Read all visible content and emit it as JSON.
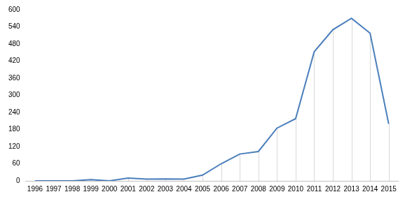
{
  "chart_data": {
    "type": "line",
    "categories": [
      "1996",
      "1997",
      "1998",
      "1999",
      "2000",
      "2001",
      "2002",
      "2003",
      "2004",
      "2005",
      "2006",
      "2007",
      "2008",
      "2009",
      "2010",
      "2011",
      "2012",
      "2013",
      "2014",
      "2015"
    ],
    "values": [
      0,
      0,
      0,
      4,
      0,
      10,
      6,
      7,
      6,
      20,
      60,
      94,
      103,
      185,
      218,
      453,
      530,
      570,
      518,
      200
    ],
    "color": "#4a7ebb",
    "ylim": [
      0,
      600
    ],
    "yticks": [
      0,
      60,
      120,
      180,
      240,
      300,
      360,
      420,
      480,
      540,
      600
    ],
    "grid": false
  }
}
